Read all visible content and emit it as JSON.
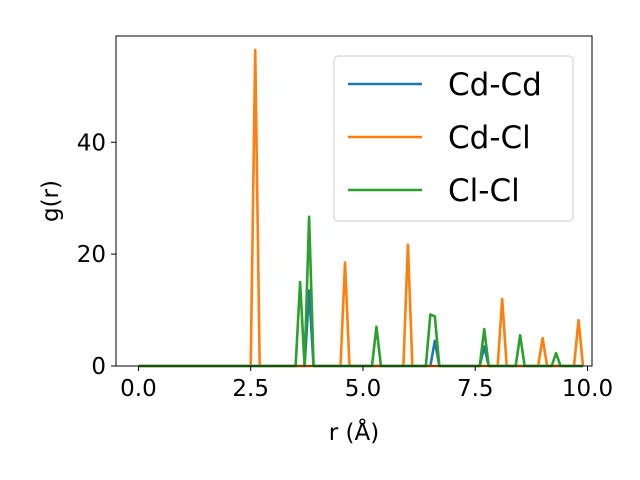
{
  "chart_data": {
    "type": "line",
    "xlabel": "r (Å)",
    "ylabel": "g(r)",
    "xlim": [
      -0.5,
      10.1
    ],
    "ylim": [
      0,
      59
    ],
    "xticks": [
      0.0,
      2.5,
      5.0,
      7.5,
      10.0
    ],
    "xtick_labels": [
      "0.0",
      "2.5",
      "5.0",
      "7.5",
      "10.0"
    ],
    "yticks": [
      0,
      20,
      40
    ],
    "ytick_labels": [
      "0",
      "20",
      "40"
    ],
    "grid": false,
    "legend_position": "top-right",
    "series": [
      {
        "name": "Cd-Cd",
        "color": "#1f77b4",
        "x": [
          0.0,
          3.7,
          3.8,
          3.9,
          6.5,
          6.6,
          6.7,
          7.6,
          7.7,
          7.8,
          9.9
        ],
        "y": [
          0,
          0,
          13.5,
          0,
          0,
          4.5,
          0,
          0,
          3.5,
          0,
          0
        ]
      },
      {
        "name": "Cd-Cl",
        "color": "#ff7f0e",
        "x": [
          0.0,
          2.5,
          2.6,
          2.7,
          4.5,
          4.6,
          4.7,
          5.9,
          6.0,
          6.1,
          8.0,
          8.1,
          8.2,
          8.9,
          9.0,
          9.1,
          9.7,
          9.8,
          9.9
        ],
        "y": [
          0,
          0,
          56.5,
          0,
          0,
          18.5,
          0,
          0,
          21.7,
          0,
          0,
          12.0,
          0,
          0,
          5.0,
          0,
          0,
          8.2,
          0
        ]
      },
      {
        "name": "Cl-Cl",
        "color": "#2ca02c",
        "x": [
          0.0,
          3.5,
          3.6,
          3.7,
          3.8,
          3.9,
          5.2,
          5.3,
          5.4,
          6.4,
          6.5,
          6.6,
          6.7,
          7.6,
          7.7,
          7.8,
          8.4,
          8.5,
          8.6,
          9.2,
          9.3,
          9.4,
          9.9
        ],
        "y": [
          0,
          0,
          15.0,
          0,
          26.7,
          0,
          0,
          7.0,
          0,
          0,
          9.2,
          8.9,
          0,
          0,
          6.6,
          0,
          0,
          5.5,
          0,
          0,
          2.3,
          0,
          0
        ]
      }
    ]
  }
}
